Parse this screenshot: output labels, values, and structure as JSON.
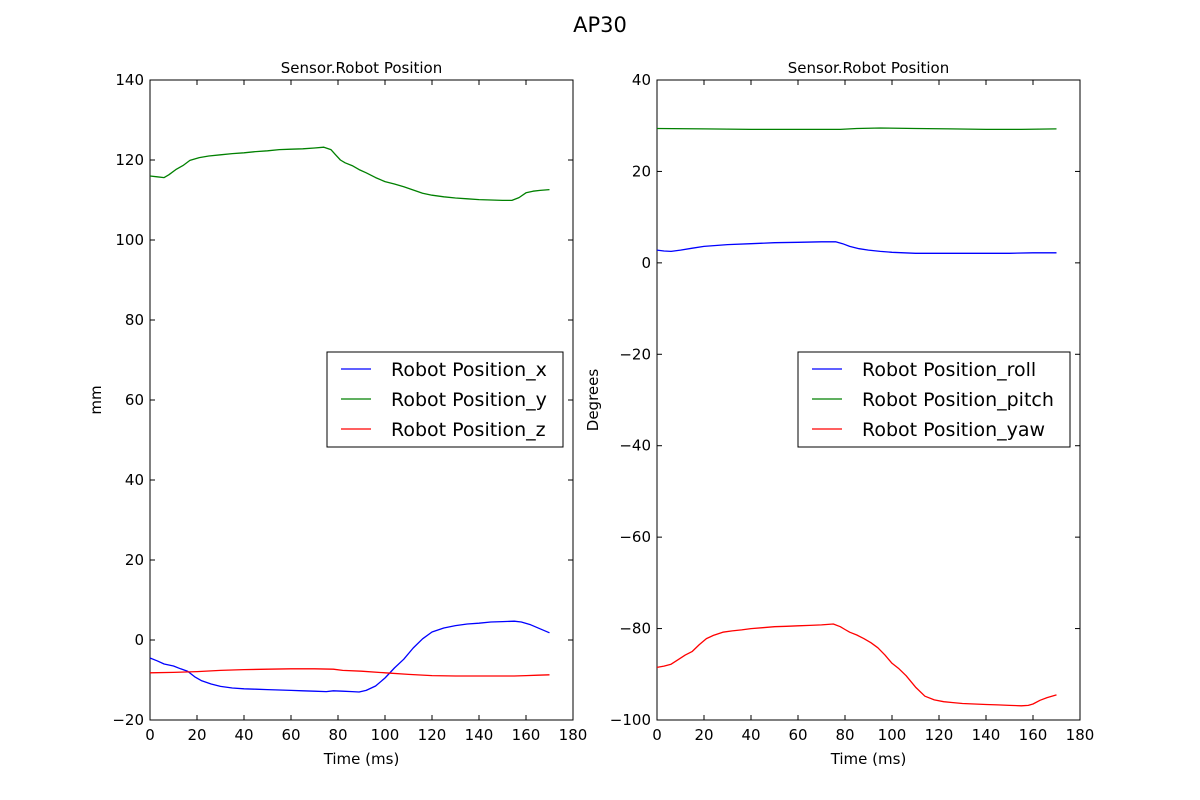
{
  "figure_title": "AP30",
  "chart_data": [
    {
      "type": "line",
      "title": "Sensor.Robot Position",
      "xlabel": "Time (ms)",
      "ylabel": "mm",
      "xlim": [
        0,
        180
      ],
      "ylim": [
        -20,
        140
      ],
      "xticks": [
        0,
        20,
        40,
        60,
        80,
        100,
        120,
        140,
        160,
        180
      ],
      "yticks": [
        -20,
        0,
        20,
        40,
        60,
        80,
        100,
        120,
        140
      ],
      "grid": false,
      "legend_position": "center-right",
      "series": [
        {
          "name": "Robot Position_x",
          "color": "#0000ff",
          "x": [
            0,
            3,
            6,
            10,
            13,
            16,
            19,
            22,
            26,
            30,
            35,
            40,
            45,
            50,
            55,
            60,
            65,
            70,
            75,
            78,
            82,
            86,
            89,
            92,
            96,
            100,
            104,
            108,
            112,
            116,
            120,
            125,
            130,
            135,
            140,
            145,
            150,
            155,
            158,
            162,
            166,
            170
          ],
          "y": [
            -4.5,
            -5.2,
            -6.0,
            -6.5,
            -7.2,
            -7.8,
            -9.2,
            -10.2,
            -11.0,
            -11.6,
            -12.0,
            -12.2,
            -12.3,
            -12.4,
            -12.5,
            -12.6,
            -12.7,
            -12.8,
            -12.9,
            -12.7,
            -12.8,
            -12.9,
            -13.0,
            -12.6,
            -11.5,
            -9.5,
            -7.0,
            -4.8,
            -2.0,
            0.3,
            2.0,
            3.0,
            3.6,
            4.0,
            4.2,
            4.5,
            4.6,
            4.7,
            4.5,
            3.8,
            2.8,
            1.8
          ]
        },
        {
          "name": "Robot Position_y",
          "color": "#008000",
          "x": [
            0,
            3,
            6,
            8,
            11,
            14,
            17,
            21,
            25,
            30,
            35,
            40,
            45,
            50,
            55,
            60,
            65,
            70,
            74,
            77,
            79,
            81,
            83,
            86,
            89,
            92,
            96,
            100,
            104,
            108,
            112,
            116,
            120,
            125,
            130,
            135,
            140,
            145,
            150,
            154,
            157,
            160,
            163,
            166,
            170
          ],
          "y": [
            116.0,
            115.8,
            115.6,
            116.3,
            117.6,
            118.6,
            119.9,
            120.6,
            121.0,
            121.3,
            121.6,
            121.8,
            122.1,
            122.3,
            122.6,
            122.7,
            122.8,
            123.0,
            123.2,
            122.6,
            121.3,
            120.0,
            119.3,
            118.6,
            117.6,
            116.8,
            115.6,
            114.6,
            114.0,
            113.3,
            112.5,
            111.7,
            111.2,
            110.8,
            110.5,
            110.3,
            110.1,
            110.0,
            109.9,
            109.9,
            110.6,
            111.8,
            112.2,
            112.4,
            112.6
          ]
        },
        {
          "name": "Robot Position_z",
          "color": "#ff0000",
          "x": [
            0,
            10,
            20,
            30,
            40,
            50,
            60,
            70,
            78,
            82,
            90,
            100,
            110,
            120,
            130,
            140,
            150,
            155,
            160,
            165,
            170
          ],
          "y": [
            -8.2,
            -8.1,
            -7.9,
            -7.6,
            -7.4,
            -7.3,
            -7.2,
            -7.2,
            -7.3,
            -7.6,
            -7.8,
            -8.2,
            -8.6,
            -8.9,
            -9.0,
            -9.0,
            -9.0,
            -9.0,
            -8.9,
            -8.8,
            -8.7
          ]
        }
      ]
    },
    {
      "type": "line",
      "title": "Sensor.Robot Position",
      "xlabel": "Time (ms)",
      "ylabel": "Degrees",
      "xlim": [
        0,
        180
      ],
      "ylim": [
        -100,
        40
      ],
      "xticks": [
        0,
        20,
        40,
        60,
        80,
        100,
        120,
        140,
        160,
        180
      ],
      "yticks": [
        -100,
        -80,
        -60,
        -40,
        -20,
        0,
        20,
        40
      ],
      "grid": false,
      "legend_position": "center-right",
      "series": [
        {
          "name": "Robot Position_roll",
          "color": "#0000ff",
          "x": [
            0,
            3,
            6,
            10,
            15,
            20,
            25,
            30,
            40,
            50,
            60,
            70,
            76,
            79,
            82,
            86,
            90,
            95,
            100,
            105,
            110,
            120,
            130,
            140,
            150,
            160,
            165,
            170
          ],
          "y": [
            2.8,
            2.6,
            2.5,
            2.8,
            3.2,
            3.6,
            3.8,
            4.0,
            4.2,
            4.4,
            4.5,
            4.6,
            4.6,
            4.2,
            3.6,
            3.1,
            2.8,
            2.5,
            2.3,
            2.2,
            2.1,
            2.1,
            2.1,
            2.1,
            2.1,
            2.2,
            2.2,
            2.2
          ]
        },
        {
          "name": "Robot Position_pitch",
          "color": "#008000",
          "x": [
            0,
            20,
            40,
            60,
            78,
            85,
            95,
            110,
            125,
            140,
            155,
            170
          ],
          "y": [
            29.4,
            29.3,
            29.2,
            29.2,
            29.2,
            29.4,
            29.5,
            29.4,
            29.3,
            29.2,
            29.2,
            29.3
          ]
        },
        {
          "name": "Robot Position_yaw",
          "color": "#ff0000",
          "x": [
            0,
            3,
            6,
            9,
            12,
            15,
            18,
            21,
            24,
            28,
            32,
            36,
            40,
            45,
            50,
            55,
            60,
            65,
            70,
            75,
            78,
            80,
            82,
            85,
            88,
            91,
            94,
            97,
            100,
            103,
            106,
            110,
            114,
            118,
            122,
            126,
            130,
            135,
            140,
            145,
            150,
            155,
            158,
            160,
            163,
            166,
            170
          ],
          "y": [
            -88.5,
            -88.2,
            -87.8,
            -86.8,
            -85.8,
            -85.0,
            -83.5,
            -82.2,
            -81.5,
            -80.8,
            -80.5,
            -80.3,
            -80.0,
            -79.8,
            -79.6,
            -79.5,
            -79.4,
            -79.3,
            -79.2,
            -79.0,
            -79.6,
            -80.2,
            -80.8,
            -81.4,
            -82.2,
            -83.1,
            -84.2,
            -85.8,
            -87.6,
            -88.8,
            -90.3,
            -92.8,
            -94.8,
            -95.6,
            -96.0,
            -96.2,
            -96.4,
            -96.5,
            -96.6,
            -96.7,
            -96.8,
            -96.9,
            -96.8,
            -96.5,
            -95.7,
            -95.1,
            -94.5
          ]
        }
      ]
    }
  ]
}
